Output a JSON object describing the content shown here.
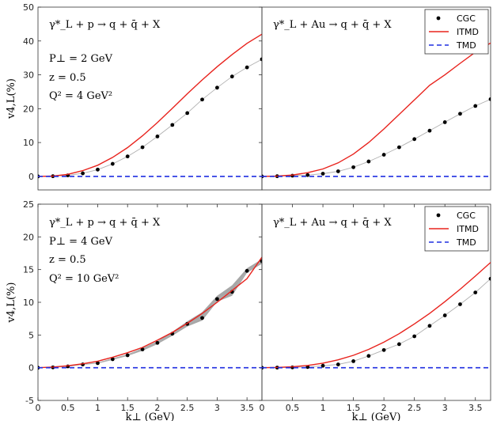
{
  "chart_data": [
    {
      "type": "line",
      "panel": "top-left",
      "title": "γ*_L + p → q + q̄ + X",
      "annotations": [
        "P⊥ = 2 GeV",
        "z = 0.5",
        "Q² = 4 GeV²"
      ],
      "ylabel": "v4,L(%)",
      "xlabel": "",
      "xlim": [
        0,
        3.75
      ],
      "ylim": [
        -4,
        50
      ],
      "yticks": [
        0,
        10,
        20,
        30,
        40,
        50
      ],
      "xticks": [],
      "series": [
        {
          "name": "CGC",
          "style": "dots",
          "x": [
            0,
            0.25,
            0.5,
            0.75,
            1.0,
            1.25,
            1.5,
            1.75,
            2.0,
            2.25,
            2.5,
            2.75,
            3.0,
            3.25,
            3.5,
            3.75
          ],
          "values": [
            0,
            0.05,
            0.3,
            0.9,
            2.0,
            3.7,
            5.9,
            8.6,
            11.8,
            15.2,
            18.7,
            22.7,
            26.2,
            29.5,
            32.2,
            34.6
          ]
        },
        {
          "name": "ITMD",
          "style": "red-line",
          "x": [
            0,
            0.25,
            0.5,
            0.75,
            1.0,
            1.25,
            1.5,
            1.75,
            2.0,
            2.25,
            2.5,
            2.75,
            3.0,
            3.25,
            3.5,
            3.75
          ],
          "values": [
            0,
            0.1,
            0.6,
            1.7,
            3.3,
            5.6,
            8.5,
            12.0,
            15.9,
            20.1,
            24.4,
            28.5,
            32.4,
            36.0,
            39.3,
            42.0
          ]
        },
        {
          "name": "TMD",
          "style": "blue-dashed",
          "x": [
            0,
            3.75
          ],
          "values": [
            0,
            0
          ]
        }
      ],
      "show_legend": false
    },
    {
      "type": "line",
      "panel": "top-right",
      "title": "γ*_L + Au → q + q̄ + X",
      "annotations": [],
      "xlim": [
        0,
        3.75
      ],
      "ylim": [
        -4,
        50
      ],
      "series": [
        {
          "name": "CGC",
          "style": "dots",
          "x": [
            0,
            0.25,
            0.5,
            0.75,
            1.0,
            1.25,
            1.5,
            1.75,
            2.0,
            2.25,
            2.5,
            2.75,
            3.0,
            3.25,
            3.5,
            3.75
          ],
          "values": [
            0,
            0.05,
            0.2,
            0.4,
            0.8,
            1.5,
            2.7,
            4.4,
            6.4,
            8.6,
            11.0,
            13.5,
            16.0,
            18.5,
            20.8,
            22.8
          ]
        },
        {
          "name": "ITMD",
          "style": "red-line",
          "x": [
            0,
            0.25,
            0.5,
            0.75,
            1.0,
            1.25,
            1.5,
            1.75,
            2.0,
            2.25,
            2.5,
            2.75,
            3.0,
            3.25,
            3.5,
            3.75
          ],
          "values": [
            0,
            0.1,
            0.4,
            1.1,
            2.2,
            4.0,
            6.6,
            10.0,
            14.0,
            18.3,
            22.6,
            26.9,
            30.0,
            33.4,
            36.7,
            39.4
          ]
        },
        {
          "name": "TMD",
          "style": "blue-dashed",
          "x": [
            0,
            3.75
          ],
          "values": [
            0,
            0
          ]
        }
      ],
      "show_legend": true,
      "legend_position": "top-right",
      "legend": [
        "CGC",
        "ITMD",
        "TMD"
      ]
    },
    {
      "type": "line",
      "panel": "bottom-left",
      "title": "γ*_L + p → q + q̄ + X",
      "annotations": [
        "P⊥ = 4 GeV",
        "z = 0.5",
        "Q² = 10 GeV²"
      ],
      "ylabel": "v4,L(%)",
      "xlabel": "k⊥ (GeV)",
      "xlim": [
        0,
        3.75
      ],
      "ylim": [
        -5,
        25
      ],
      "yticks": [
        -5,
        0,
        5,
        10,
        15,
        20,
        25
      ],
      "xticks": [
        0,
        0.5,
        1,
        1.5,
        2,
        2.5,
        3,
        3.5
      ],
      "series": [
        {
          "name": "CGC",
          "style": "dots-band",
          "x": [
            0,
            0.25,
            0.5,
            0.75,
            1.0,
            1.25,
            1.5,
            1.75,
            2.0,
            2.25,
            2.5,
            2.75,
            3.0,
            3.25,
            3.5,
            3.75
          ],
          "values": [
            0,
            0.05,
            0.2,
            0.5,
            0.7,
            1.3,
            1.9,
            2.8,
            3.8,
            5.2,
            6.7,
            7.6,
            10.5,
            11.6,
            14.8,
            16.3
          ],
          "band_low": [
            0,
            0.05,
            0.2,
            0.45,
            0.65,
            1.2,
            1.8,
            2.6,
            3.6,
            4.9,
            6.3,
            7.2,
            10.1,
            11.0,
            14.5,
            15.9
          ],
          "band_high": [
            0,
            0.05,
            0.2,
            0.55,
            0.8,
            1.45,
            2.05,
            3.0,
            4.05,
            5.5,
            7.1,
            8.5,
            11.0,
            12.6,
            15.2,
            16.6
          ]
        },
        {
          "name": "ITMD",
          "style": "red-line",
          "x": [
            0,
            0.25,
            0.5,
            0.75,
            1.0,
            1.25,
            1.5,
            1.75,
            2.0,
            2.25,
            2.5,
            2.75,
            3.0,
            3.25,
            3.5,
            3.75
          ],
          "values": [
            0,
            0.1,
            0.3,
            0.6,
            1.0,
            1.6,
            2.3,
            3.1,
            4.2,
            5.4,
            6.8,
            8.3,
            10.0,
            11.8,
            13.6,
            16.9
          ]
        },
        {
          "name": "TMD",
          "style": "blue-dashed",
          "x": [
            0,
            3.75
          ],
          "values": [
            0,
            0
          ]
        }
      ],
      "show_legend": false
    },
    {
      "type": "line",
      "panel": "bottom-right",
      "title": "γ*_L + Au → q + q̄ + X",
      "annotations": [],
      "xlabel": "k⊥ (GeV)",
      "xlim": [
        0,
        3.75
      ],
      "ylim": [
        -5,
        25
      ],
      "xticks": [
        0,
        0.5,
        1,
        1.5,
        2,
        2.5,
        3,
        3.5
      ],
      "series": [
        {
          "name": "CGC",
          "style": "dots",
          "x": [
            0,
            0.25,
            0.5,
            0.75,
            1.0,
            1.25,
            1.5,
            1.75,
            2.0,
            2.25,
            2.5,
            2.75,
            3.0,
            3.25,
            3.5,
            3.75
          ],
          "values": [
            0,
            0.02,
            0.05,
            0.1,
            0.3,
            0.5,
            1.0,
            1.8,
            2.7,
            3.6,
            4.8,
            6.4,
            8.0,
            9.7,
            11.5,
            13.6
          ]
        },
        {
          "name": "ITMD",
          "style": "red-line",
          "x": [
            0,
            0.25,
            0.5,
            0.75,
            1.0,
            1.25,
            1.5,
            1.75,
            2.0,
            2.25,
            2.5,
            2.75,
            3.0,
            3.25,
            3.5,
            3.75
          ],
          "values": [
            0,
            0.05,
            0.15,
            0.35,
            0.7,
            1.2,
            1.9,
            2.8,
            3.9,
            5.2,
            6.7,
            8.3,
            10.1,
            12.0,
            14.0,
            16.1
          ]
        },
        {
          "name": "TMD",
          "style": "blue-dashed",
          "x": [
            0,
            3.75
          ],
          "values": [
            0,
            0
          ]
        }
      ],
      "show_legend": true,
      "legend_position": "top-right",
      "legend": [
        "CGC",
        "ITMD",
        "TMD"
      ]
    }
  ],
  "colors": {
    "cgc": "#000000",
    "itmd": "#e8231d",
    "tmd": "#1f2ee0",
    "connector": "#b0b0b0",
    "band": "#8a8a8a"
  }
}
